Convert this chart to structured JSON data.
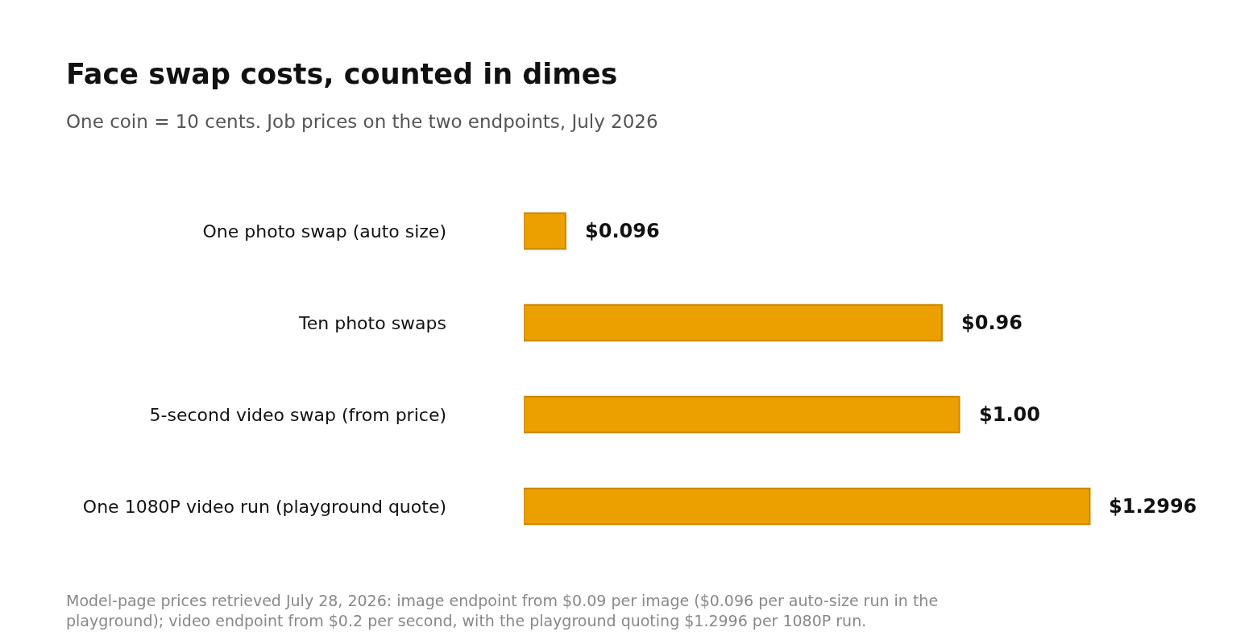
{
  "chart_data": {
    "type": "bar",
    "orientation": "horizontal",
    "title": "Face swap costs, counted in dimes",
    "subtitle": "One coin = 10 cents. Job prices on the two endpoints, July 2026",
    "categories": [
      "One photo swap (auto size)",
      "Ten photo swaps",
      "5-second video swap (from price)",
      "One 1080P video run (playground quote)"
    ],
    "values": [
      0.096,
      0.96,
      1.0,
      1.2996
    ],
    "color": "#eba000",
    "value_labels": [
      "$0.096",
      "$0.96",
      "$1.00",
      "$1.2996"
    ],
    "tick_labels": "y",
    "annotations": [
      "Model-page prices retrieved July 28, 2026: image endpoint from $0.09 per image ($0.096 per auto-size run in the playground); video endpoint from $0.2 per second, with the playground quoting $1.2996 per 1080P run."
    ]
  }
}
